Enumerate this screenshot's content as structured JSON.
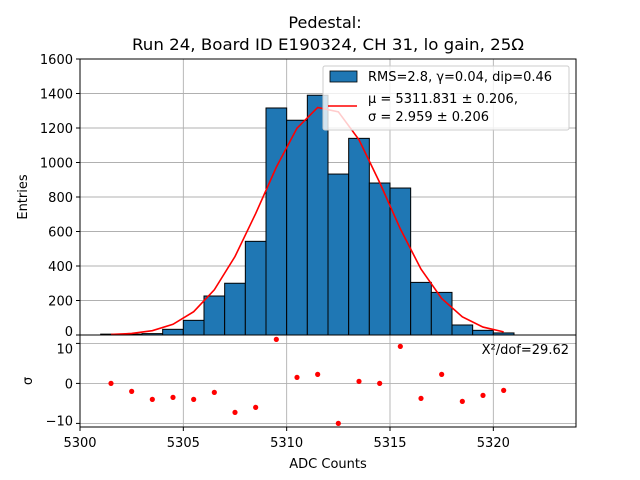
{
  "chart_data": {
    "type": "bar",
    "title": "Pedestal:",
    "subtitle": "Run 24, Board ID E190324, CH 31, lo gain, 25Ω",
    "xlabel": "ADC Counts",
    "ylabel": "Entries",
    "residual_ylabel": "σ",
    "xlim": [
      5300,
      5324
    ],
    "ylim": [
      0,
      1600
    ],
    "residual_ylim": [
      -10.9,
      12.1
    ],
    "grid": true,
    "legend_placement": "top-right",
    "x_ticks": [
      "5300",
      "5305",
      "5310",
      "5315",
      "5320"
    ],
    "y_ticks": [
      "0",
      "200",
      "400",
      "600",
      "800",
      "1000",
      "1200",
      "1400",
      "1600"
    ],
    "residual_y_ticks": [
      "−10",
      "0",
      "10"
    ],
    "histogram": {
      "name": "RMS=2.8, γ=0.04, dip=0.46",
      "color": "#1f77b4",
      "bin_edges_start": 5301,
      "bin_width": 1,
      "values": [
        5,
        5,
        8,
        33,
        85,
        226,
        300,
        543,
        1316,
        1245,
        1390,
        933,
        1140,
        881,
        852,
        305,
        247,
        58,
        27,
        12
      ]
    },
    "fit": {
      "name_line1": "μ = 5311.831 ± 0.206,",
      "name_line2": "σ = 2.959 ± 0.206",
      "color": "#ff0000",
      "x": [
        5301.5,
        5302.5,
        5303.5,
        5304.5,
        5305.5,
        5306.5,
        5307.5,
        5308.5,
        5309.5,
        5310.5,
        5311.5,
        5312.5,
        5313.5,
        5314.5,
        5315.5,
        5316.5,
        5317.5,
        5318.5,
        5319.5,
        5320.5
      ],
      "y": [
        3,
        9,
        25,
        62,
        135,
        262,
        455,
        704,
        973,
        1199,
        1319,
        1294,
        1132,
        884,
        615,
        382,
        212,
        105,
        46,
        18
      ]
    },
    "residuals": {
      "color": "#ff0000",
      "x": [
        5301.5,
        5302.5,
        5303.5,
        5304.5,
        5305.5,
        5306.5,
        5307.5,
        5308.5,
        5309.5,
        5310.5,
        5311.5,
        5312.5,
        5313.5,
        5314.5,
        5315.5,
        5316.5,
        5317.5,
        5318.5,
        5319.5,
        5320.5
      ],
      "y": [
        0.0,
        -2.0,
        -4.0,
        -3.5,
        -4.0,
        -2.25,
        -7.25,
        -6.0,
        11.0,
        1.5,
        2.25,
        -10.0,
        0.5,
        0.0,
        9.25,
        -3.75,
        2.25,
        -4.5,
        -3.0,
        -1.75
      ]
    },
    "annotation": "X²/dof=29.62"
  }
}
